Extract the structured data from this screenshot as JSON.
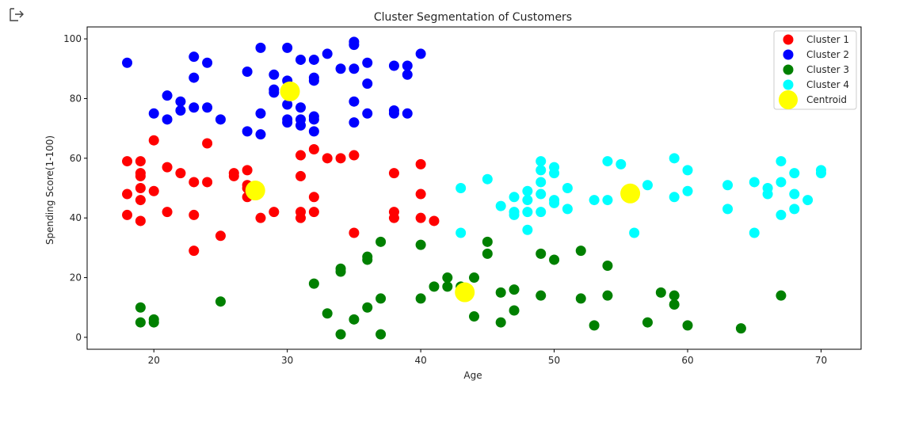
{
  "cell": {
    "output_icon": "output-arrow-icon"
  },
  "chart_data": {
    "type": "scatter",
    "title": "Cluster Segmentation of Customers",
    "xlabel": "Age",
    "ylabel": "Spending Score(1-100)",
    "xlim": [
      15,
      73
    ],
    "ylim": [
      -4,
      104
    ],
    "xticks": [
      20,
      30,
      40,
      50,
      60,
      70
    ],
    "yticks": [
      0,
      20,
      40,
      60,
      80,
      100
    ],
    "grid": false,
    "legend_position": "top-right",
    "series": [
      {
        "name": "Cluster 1",
        "color": "#ff0000",
        "points": [
          [
            18,
            59
          ],
          [
            18,
            48
          ],
          [
            18,
            41
          ],
          [
            19,
            59
          ],
          [
            19,
            55
          ],
          [
            19,
            54
          ],
          [
            19,
            50
          ],
          [
            19,
            46
          ],
          [
            19,
            39
          ],
          [
            20,
            49
          ],
          [
            20,
            66
          ],
          [
            21,
            57
          ],
          [
            21,
            42
          ],
          [
            22,
            55
          ],
          [
            23,
            52
          ],
          [
            23,
            41
          ],
          [
            23,
            29
          ],
          [
            24,
            65
          ],
          [
            24,
            52
          ],
          [
            25,
            34
          ],
          [
            26,
            55
          ],
          [
            26,
            54
          ],
          [
            27,
            56
          ],
          [
            27,
            51
          ],
          [
            27,
            50
          ],
          [
            27,
            47
          ],
          [
            28,
            40
          ],
          [
            29,
            42
          ],
          [
            31,
            61
          ],
          [
            31,
            54
          ],
          [
            31,
            42
          ],
          [
            31,
            40
          ],
          [
            32,
            63
          ],
          [
            32,
            47
          ],
          [
            32,
            42
          ],
          [
            33,
            60
          ],
          [
            34,
            60
          ],
          [
            35,
            61
          ],
          [
            35,
            35
          ],
          [
            38,
            55
          ],
          [
            38,
            42
          ],
          [
            38,
            40
          ],
          [
            40,
            58
          ],
          [
            40,
            48
          ],
          [
            40,
            40
          ],
          [
            41,
            39
          ]
        ]
      },
      {
        "name": "Cluster 2",
        "color": "#0000ff",
        "points": [
          [
            18,
            92
          ],
          [
            20,
            75
          ],
          [
            21,
            81
          ],
          [
            21,
            73
          ],
          [
            22,
            79
          ],
          [
            22,
            76
          ],
          [
            23,
            94
          ],
          [
            23,
            87
          ],
          [
            23,
            77
          ],
          [
            24,
            92
          ],
          [
            24,
            77
          ],
          [
            25,
            73
          ],
          [
            27,
            89
          ],
          [
            27,
            69
          ],
          [
            28,
            97
          ],
          [
            28,
            75
          ],
          [
            28,
            68
          ],
          [
            29,
            88
          ],
          [
            29,
            83
          ],
          [
            29,
            82
          ],
          [
            30,
            97
          ],
          [
            30,
            86
          ],
          [
            30,
            78
          ],
          [
            30,
            73
          ],
          [
            30,
            72
          ],
          [
            31,
            93
          ],
          [
            31,
            77
          ],
          [
            31,
            73
          ],
          [
            31,
            71
          ],
          [
            32,
            93
          ],
          [
            32,
            87
          ],
          [
            32,
            86
          ],
          [
            32,
            74
          ],
          [
            32,
            73
          ],
          [
            32,
            69
          ],
          [
            33,
            95
          ],
          [
            34,
            90
          ],
          [
            35,
            99
          ],
          [
            35,
            98
          ],
          [
            35,
            90
          ],
          [
            35,
            79
          ],
          [
            35,
            72
          ],
          [
            36,
            92
          ],
          [
            36,
            85
          ],
          [
            36,
            75
          ],
          [
            38,
            91
          ],
          [
            38,
            76
          ],
          [
            38,
            75
          ],
          [
            39,
            91
          ],
          [
            39,
            88
          ],
          [
            39,
            75
          ],
          [
            40,
            95
          ]
        ]
      },
      {
        "name": "Cluster 3",
        "color": "#008000",
        "points": [
          [
            19,
            10
          ],
          [
            19,
            5
          ],
          [
            20,
            6
          ],
          [
            20,
            5
          ],
          [
            25,
            12
          ],
          [
            32,
            18
          ],
          [
            33,
            8
          ],
          [
            34,
            23
          ],
          [
            34,
            22
          ],
          [
            34,
            1
          ],
          [
            35,
            6
          ],
          [
            36,
            27
          ],
          [
            36,
            26
          ],
          [
            36,
            10
          ],
          [
            37,
            32
          ],
          [
            37,
            13
          ],
          [
            37,
            1
          ],
          [
            40,
            31
          ],
          [
            40,
            13
          ],
          [
            41,
            17
          ],
          [
            42,
            20
          ],
          [
            42,
            17
          ],
          [
            43,
            17
          ],
          [
            44,
            20
          ],
          [
            44,
            7
          ],
          [
            45,
            32
          ],
          [
            45,
            28
          ],
          [
            46,
            15
          ],
          [
            46,
            5
          ],
          [
            47,
            16
          ],
          [
            47,
            9
          ],
          [
            49,
            28
          ],
          [
            49,
            14
          ],
          [
            50,
            26
          ],
          [
            52,
            29
          ],
          [
            52,
            13
          ],
          [
            53,
            4
          ],
          [
            54,
            24
          ],
          [
            54,
            14
          ],
          [
            57,
            5
          ],
          [
            58,
            15
          ],
          [
            59,
            14
          ],
          [
            59,
            11
          ],
          [
            60,
            4
          ],
          [
            64,
            3
          ],
          [
            67,
            14
          ]
        ]
      },
      {
        "name": "Cluster 4",
        "color": "#00ffff",
        "points": [
          [
            43,
            50
          ],
          [
            43,
            35
          ],
          [
            45,
            53
          ],
          [
            46,
            44
          ],
          [
            47,
            47
          ],
          [
            47,
            42
          ],
          [
            47,
            41
          ],
          [
            48,
            49
          ],
          [
            48,
            46
          ],
          [
            48,
            42
          ],
          [
            48,
            36
          ],
          [
            49,
            59
          ],
          [
            49,
            56
          ],
          [
            49,
            52
          ],
          [
            49,
            48
          ],
          [
            49,
            42
          ],
          [
            50,
            57
          ],
          [
            50,
            55
          ],
          [
            50,
            46
          ],
          [
            50,
            45
          ],
          [
            51,
            50
          ],
          [
            51,
            43
          ],
          [
            53,
            46
          ],
          [
            54,
            59
          ],
          [
            54,
            46
          ],
          [
            55,
            58
          ],
          [
            56,
            35
          ],
          [
            57,
            51
          ],
          [
            59,
            60
          ],
          [
            59,
            47
          ],
          [
            60,
            56
          ],
          [
            60,
            49
          ],
          [
            63,
            51
          ],
          [
            63,
            43
          ],
          [
            65,
            52
          ],
          [
            65,
            35
          ],
          [
            66,
            50
          ],
          [
            66,
            48
          ],
          [
            67,
            59
          ],
          [
            67,
            52
          ],
          [
            67,
            41
          ],
          [
            68,
            55
          ],
          [
            68,
            48
          ],
          [
            68,
            43
          ],
          [
            69,
            46
          ],
          [
            70,
            56
          ],
          [
            70,
            55
          ]
        ]
      },
      {
        "name": "Centroid",
        "color": "#ffff00",
        "marker": "large",
        "points": [
          [
            30.2,
            82.4
          ],
          [
            27.6,
            49.2
          ],
          [
            43.3,
            15.1
          ],
          [
            55.7,
            48.2
          ]
        ]
      }
    ]
  }
}
